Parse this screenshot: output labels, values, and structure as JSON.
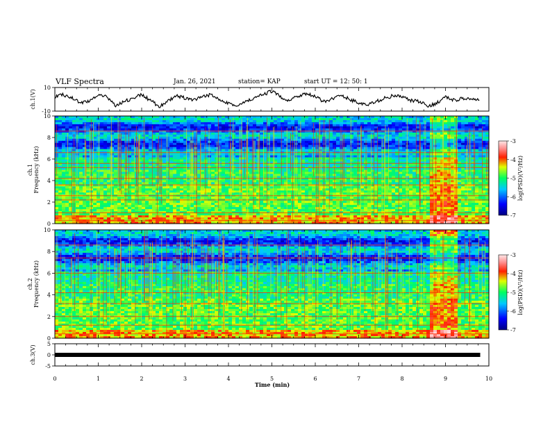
{
  "header": {
    "title": "VLF Spectra",
    "date": "Jan. 26, 2021",
    "station": "station= KAP",
    "start": "start  UT =   12: 50: 1"
  },
  "chart_data": [
    {
      "type": "line",
      "title": "",
      "ylabel": "ch.1(V)",
      "ylim": [
        -10,
        10
      ],
      "yticks": [
        "10",
        "-10"
      ],
      "xlim": [
        0,
        10
      ],
      "series": [
        {
          "x": [
            0,
            0.2,
            0.4,
            0.6,
            0.8,
            1.0,
            1.2,
            1.4,
            1.6,
            1.8,
            2.0,
            2.2,
            2.4,
            2.6,
            2.8,
            3.0,
            3.2,
            3.4,
            3.6,
            3.8,
            4.0,
            4.2,
            4.4,
            4.6,
            4.8,
            5.0,
            5.2,
            5.4,
            5.6,
            5.8,
            6.0,
            6.2,
            6.4,
            6.6,
            6.8,
            7.0,
            7.2,
            7.4,
            7.6,
            7.8,
            8.0,
            8.2,
            8.4,
            8.6,
            8.8,
            9.0,
            9.2,
            9.4,
            9.6,
            9.8
          ],
          "values": [
            2,
            4,
            1,
            -3,
            -1,
            3,
            2,
            -5,
            -2,
            1,
            4,
            -1,
            -6,
            -2,
            3,
            1,
            -1,
            2,
            4,
            0,
            -3,
            -6,
            -2,
            1,
            4,
            7,
            2,
            -1,
            3,
            5,
            2,
            -2,
            1,
            3,
            0,
            -3,
            -5,
            -2,
            1,
            3,
            2,
            -1,
            -2,
            -6,
            -3,
            2,
            -1,
            1,
            0,
            -1
          ]
        }
      ]
    },
    {
      "type": "heatmap",
      "title": "",
      "ylabel": "ch.1\nFrequency (kHz)",
      "ylim": [
        0,
        10
      ],
      "yticks": [
        "0",
        "2",
        "4",
        "6",
        "8",
        "10"
      ],
      "xlim": [
        0,
        10
      ],
      "colorbar": {
        "label": "log(PSD)(V²/Hz)",
        "range": [
          -7,
          -3
        ],
        "ticks": [
          "-3",
          "-4",
          "-5",
          "-6",
          "-7"
        ]
      }
    },
    {
      "type": "heatmap",
      "title": "",
      "ylabel": "ch.2\nFrequency (kHz)",
      "ylim": [
        0,
        10
      ],
      "yticks": [
        "0",
        "2",
        "4",
        "6",
        "8",
        "10"
      ],
      "xlim": [
        0,
        10
      ],
      "colorbar": {
        "label": "log(PSD)(V²/Hz)",
        "range": [
          -7,
          -3
        ],
        "ticks": [
          "-3",
          "-4",
          "-5",
          "-6",
          "-7"
        ]
      }
    },
    {
      "type": "line",
      "title": "",
      "ylabel": "ch.3(V)",
      "ylim": [
        -5,
        5
      ],
      "yticks": [
        "5",
        "0",
        "-5"
      ],
      "xlim": [
        0,
        10
      ],
      "series": [
        {
          "x": [
            0,
            9.8
          ],
          "values": [
            0,
            0
          ]
        }
      ]
    }
  ],
  "x_axis": {
    "label": "Time (min)",
    "ticks": [
      "0",
      "1",
      "2",
      "3",
      "4",
      "5",
      "6",
      "7",
      "8",
      "9",
      "10"
    ]
  }
}
